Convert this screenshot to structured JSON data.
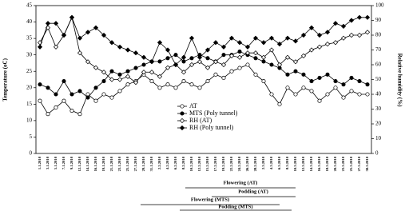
{
  "chart_data": {
    "type": "line",
    "categories": [
      "1.1.2010",
      "3.1.2010",
      "5.1.2010",
      "7.1.2010",
      "9.1.2010",
      "12.1.2010",
      "14.1.2010",
      "16.1.2010",
      "19.1.2010",
      "21.1.2010",
      "23.1.2010",
      "25.1.2010",
      "27.1.2010",
      "29.1.2010",
      "31.1.2010",
      "2.2.2010",
      "4.2.2010",
      "6.2.2010",
      "8.2.2010",
      "10.2.2010",
      "12.2.2010",
      "15.2.2010",
      "17.2.2010",
      "19.2.2010",
      "22.2.2010",
      "24.2.2010",
      "26.2.2010",
      "28.2.2010",
      "2.3.2010",
      "4.3.2010",
      "6.3.2010",
      "8.3.2010",
      "10.3.2010",
      "12.3.2010",
      "14.3.2010",
      "16.3.2010",
      "18.3.2010",
      "20.3.2010",
      "23.3.2010",
      "25.3.2010",
      "27.3.2010",
      "30.3.2010"
    ],
    "y_label": "Temperature (oC)",
    "y2_label": "Relative humidity (%)",
    "ylim": [
      0,
      45
    ],
    "yticks": [
      0,
      5,
      10,
      15,
      20,
      25,
      30,
      35,
      40,
      45
    ],
    "y2lim": [
      0,
      100
    ],
    "y2ticks": [
      0,
      10,
      20,
      30,
      40,
      50,
      60,
      70,
      80,
      90,
      100
    ],
    "legend": "center",
    "series": [
      {
        "name": "AT",
        "color": "#000000",
        "marker": "open-circle",
        "values": [
          16,
          12,
          14,
          16,
          13,
          12,
          18,
          16,
          18,
          17,
          19,
          21,
          22,
          24,
          22,
          20,
          21,
          20,
          22,
          21,
          20,
          22,
          24,
          23,
          25,
          26,
          27,
          24,
          22,
          18,
          15,
          20,
          18,
          20,
          19,
          16,
          18,
          20,
          17,
          19,
          18,
          18
        ]
      },
      {
        "name": "MTS (Poly tunnel)",
        "color": "#000000",
        "marker": "filled-circle",
        "values": [
          21,
          20,
          18,
          22,
          18,
          19,
          17,
          20,
          22,
          25,
          24,
          25,
          26,
          27,
          28,
          28,
          29,
          30,
          28,
          29,
          30,
          29,
          28,
          30,
          30,
          31,
          30,
          29,
          28,
          27,
          26,
          24,
          25,
          24,
          22,
          23,
          24,
          22,
          21,
          23,
          22,
          21
        ]
      },
      {
        "name": "RH (AT)",
        "color": "#000000",
        "marker": "open-diamond",
        "axis": "y2",
        "values": [
          75,
          85,
          72,
          80,
          92,
          68,
          62,
          58,
          55,
          50,
          50,
          52,
          48,
          55,
          55,
          52,
          58,
          60,
          55,
          60,
          62,
          58,
          62,
          60,
          66,
          65,
          68,
          68,
          65,
          70,
          60,
          65,
          62,
          66,
          70,
          72,
          74,
          75,
          78,
          80,
          80,
          82
        ]
      },
      {
        "name": "RH (Poly tunnel)",
        "color": "#000000",
        "marker": "filled-diamond",
        "axis": "y2",
        "values": [
          72,
          88,
          88,
          80,
          92,
          78,
          82,
          85,
          80,
          75,
          72,
          70,
          68,
          65,
          62,
          75,
          70,
          60,
          65,
          78,
          65,
          70,
          75,
          72,
          78,
          75,
          72,
          78,
          75,
          78,
          74,
          78,
          76,
          80,
          85,
          80,
          82,
          88,
          86,
          90,
          92,
          92
        ]
      }
    ],
    "annotations": [
      "Flowering (AT)",
      "Podding (AT)",
      "Flowering (MTS)",
      "Podding (MTS)"
    ]
  }
}
